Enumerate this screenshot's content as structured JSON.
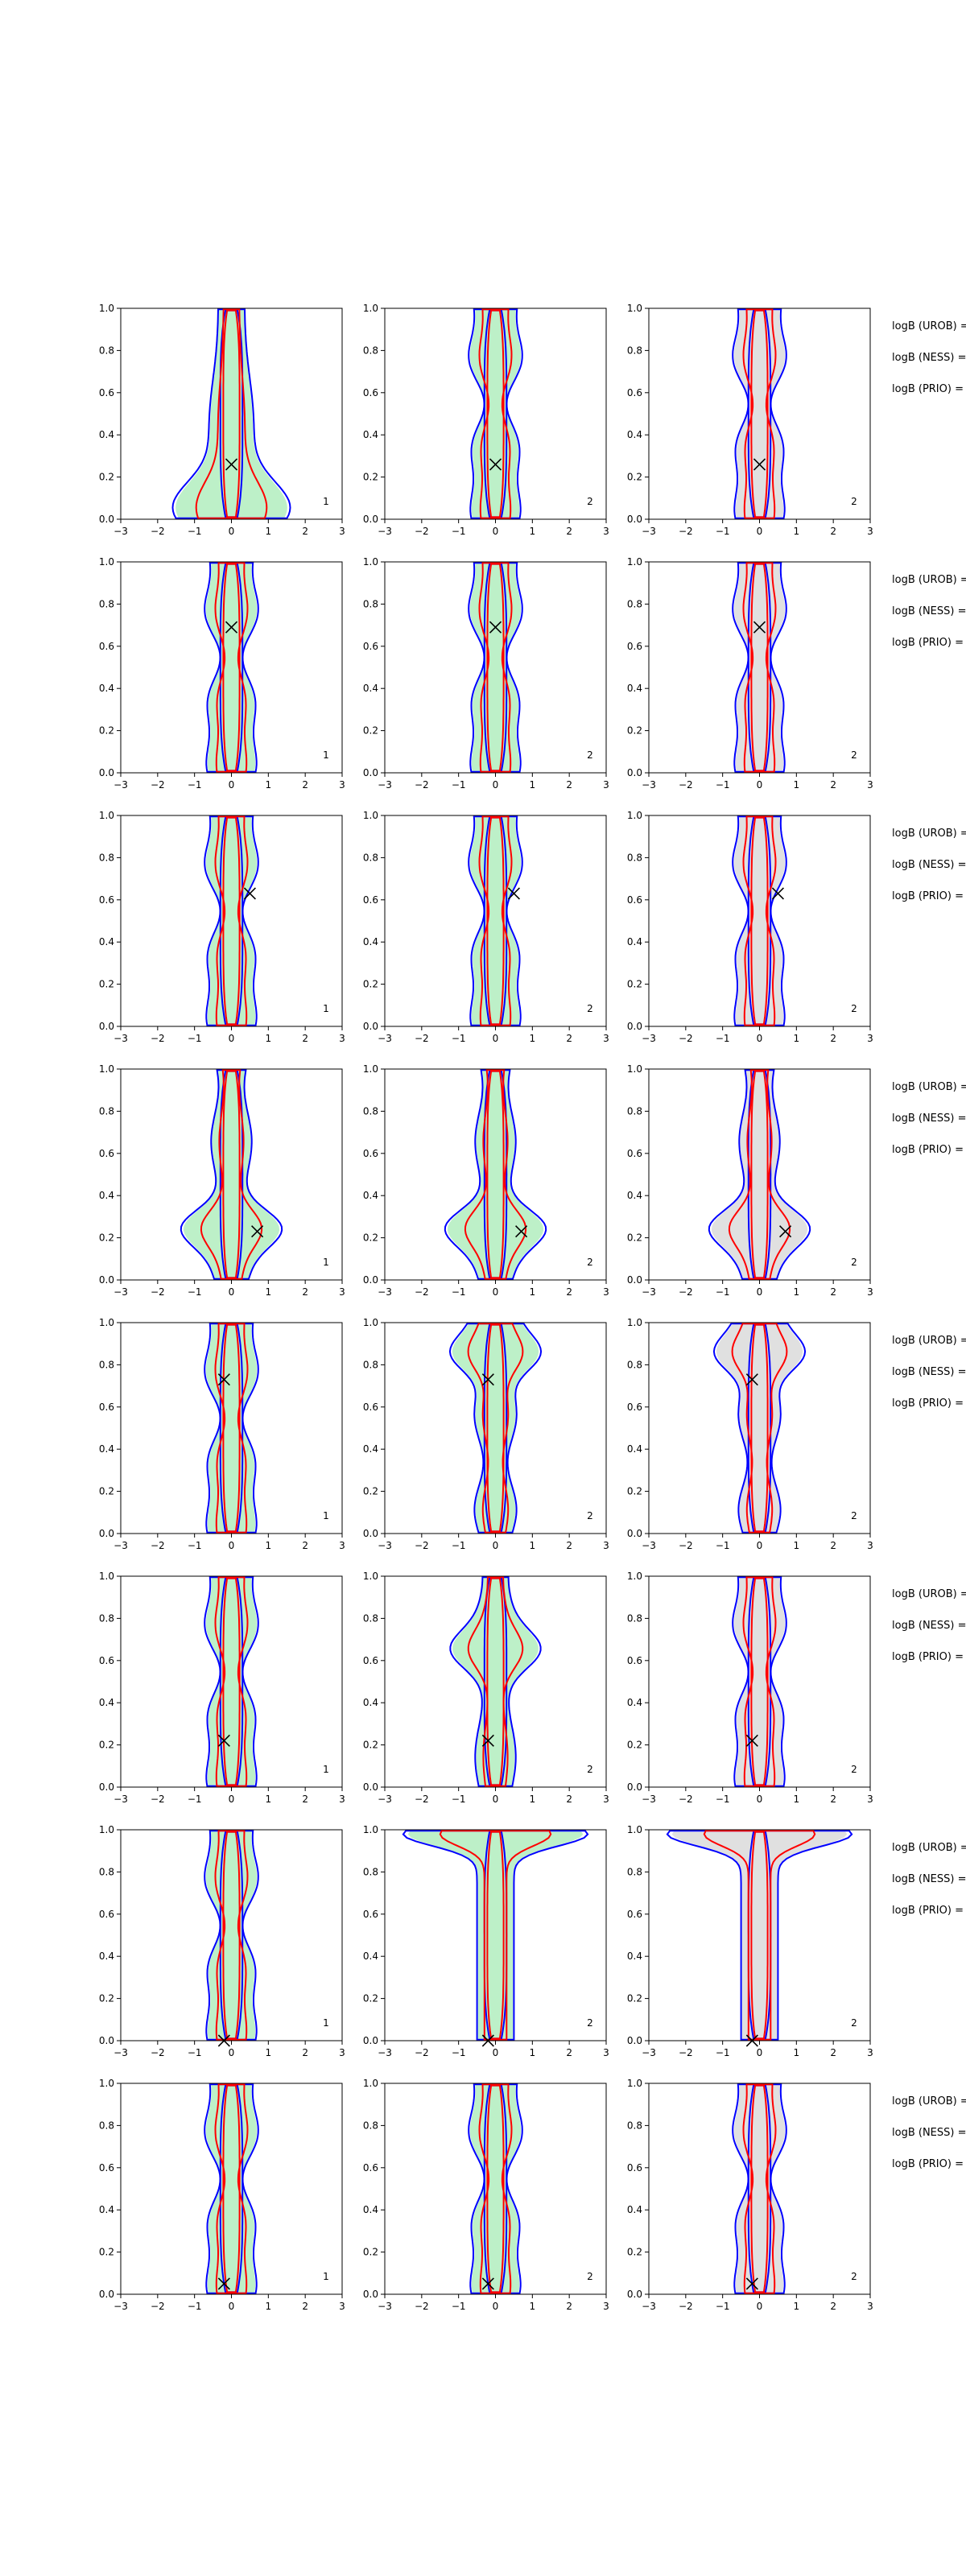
{
  "colors": {
    "blue": "#0000ff",
    "red": "#ff0000",
    "green_fill": "#bdf0c8",
    "gray_fill": "#e0e0e0",
    "axis": "#000000"
  },
  "chart_data": {
    "type": "contour",
    "xlim": [
      -3,
      3
    ],
    "ylim": [
      0,
      1
    ],
    "xticks": [
      "−3",
      "−2",
      "−1",
      "0",
      "1",
      "2",
      "3"
    ],
    "yticks": [
      "0.0",
      "0.2",
      "0.4",
      "0.6",
      "0.8",
      "1.0"
    ],
    "row_labels": [
      "logB (UROB) =",
      "logB (NESS) =",
      "logB (PRIO) ="
    ],
    "rows": [
      {
        "marker": [
          0.0,
          0.26
        ],
        "panel_labels": [
          "1",
          "2",
          "2"
        ],
        "shapes": [
          "wide_bottom",
          "narrow",
          "narrow"
        ]
      },
      {
        "marker": [
          0.0,
          0.69
        ],
        "panel_labels": [
          "1",
          "2",
          "2"
        ],
        "shapes": [
          "narrow",
          "narrow",
          "narrow"
        ]
      },
      {
        "marker": [
          0.5,
          0.63
        ],
        "panel_labels": [
          "1",
          "2",
          "2"
        ],
        "shapes": [
          "narrow",
          "narrow",
          "narrow"
        ]
      },
      {
        "marker": [
          0.7,
          0.23
        ],
        "panel_labels": [
          "1",
          "2",
          "2"
        ],
        "shapes": [
          "bulge_low",
          "bulge_low",
          "bulge_low"
        ]
      },
      {
        "marker": [
          -0.2,
          0.73
        ],
        "panel_labels": [
          "1",
          "2",
          "2"
        ],
        "shapes": [
          "narrow",
          "bulge_high",
          "bulge_high"
        ]
      },
      {
        "marker": [
          -0.2,
          0.22
        ],
        "panel_labels": [
          "1",
          "2",
          "2"
        ],
        "shapes": [
          "narrow",
          "bulge_mid",
          "narrow"
        ]
      },
      {
        "marker": [
          -0.2,
          0.0
        ],
        "panel_labels": [
          "1",
          "2",
          "2"
        ],
        "shapes": [
          "narrow",
          "t_top",
          "t_top"
        ]
      },
      {
        "marker": [
          -0.2,
          0.05
        ],
        "panel_labels": [
          "1",
          "2",
          "2"
        ],
        "shapes": [
          "narrow",
          "narrow",
          "narrow"
        ]
      }
    ],
    "columns": [
      {
        "fill": "green"
      },
      {
        "fill": "green"
      },
      {
        "fill": "gray"
      }
    ],
    "series": [
      {
        "color": "blue",
        "level": "outer"
      },
      {
        "color": "red",
        "level": "inner"
      }
    ]
  }
}
